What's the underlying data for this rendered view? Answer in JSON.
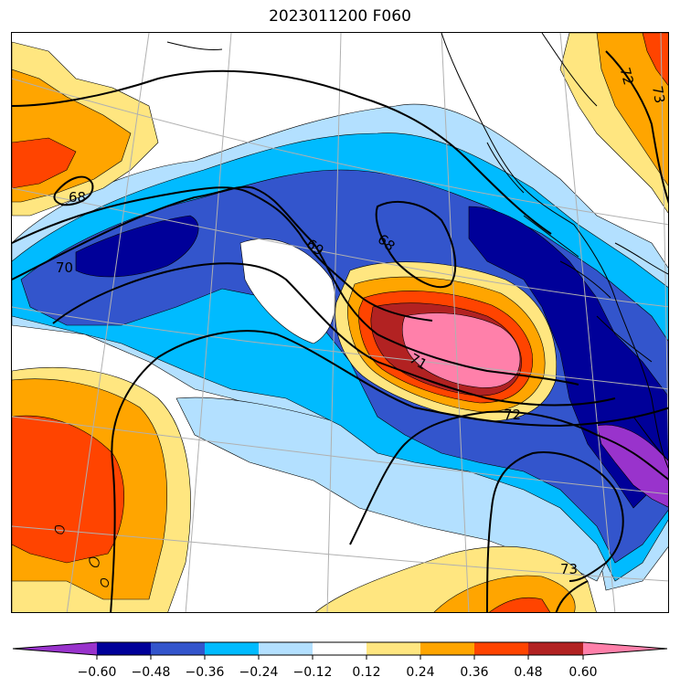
{
  "title": "2023011200 F060",
  "colors": {
    "lt_060": "#9933cc",
    "b_060_048": "#000099",
    "b_048_036": "#3355cc",
    "b_036_024": "#00bbff",
    "b_024_012": "#b3e0ff",
    "b_012_012": "#ffffff",
    "b_012_024": "#ffe680",
    "b_024_036": "#ffa500",
    "b_036_048": "#ff4400",
    "b_048_060": "#b22222",
    "gt_060": "#ff80aa"
  },
  "colorbar": {
    "ticks": [
      "−0.60",
      "−0.48",
      "−0.36",
      "−0.24",
      "−0.12",
      "0.12",
      "0.24",
      "0.36",
      "0.48",
      "0.60"
    ]
  },
  "contour_labels": {
    "c68_west": "68",
    "c70": "70",
    "c69": "69",
    "c68_center": "68",
    "c71": "71",
    "c72_center": "72",
    "c72_ne": "72",
    "c73_ne": "73",
    "c73_south": "73"
  }
}
